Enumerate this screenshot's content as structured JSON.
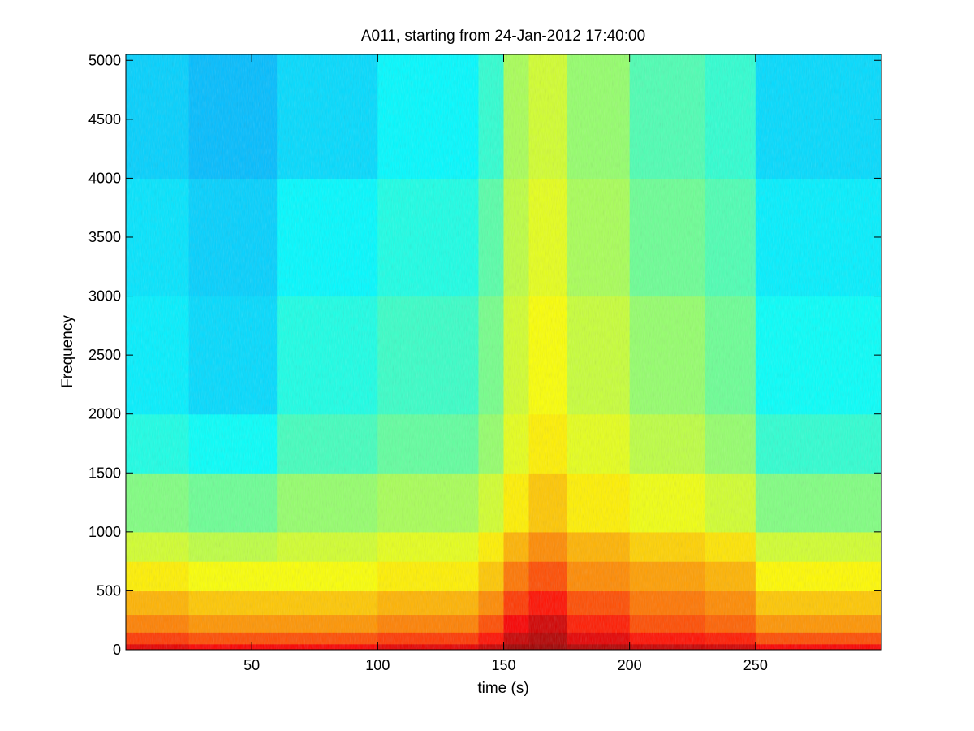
{
  "chart_data": {
    "type": "heatmap",
    "title": "A011, starting from 24-Jan-2012 17:40:00",
    "xlabel": "time (s)",
    "ylabel": "Frequency",
    "xlim": [
      0,
      300
    ],
    "ylim": [
      0,
      5050
    ],
    "x_ticks": [
      50,
      100,
      150,
      200,
      250
    ],
    "y_ticks": [
      0,
      500,
      1000,
      1500,
      2000,
      2500,
      3000,
      3500,
      4000,
      4500,
      5000
    ],
    "colormap": "jet",
    "grid": false,
    "legend": "none",
    "intensity_profile": {
      "description_values": "relative spectral power, 0 = low (cyan/blue), 1 = high (dark red)",
      "frequency_bands": [
        0,
        50,
        150,
        300,
        500,
        750,
        1000,
        1500,
        2000,
        3000,
        4000,
        5000
      ],
      "time_segments": [
        0,
        25,
        60,
        100,
        140,
        150,
        160,
        170,
        175,
        200,
        230,
        250,
        300
      ],
      "levels": [
        [
          0.9,
          0.88,
          0.88,
          0.9,
          0.93,
          0.97,
          0.97,
          0.97,
          0.95,
          0.93,
          0.92,
          0.88,
          0.88
        ],
        [
          0.82,
          0.8,
          0.8,
          0.82,
          0.86,
          0.93,
          0.95,
          0.95,
          0.9,
          0.86,
          0.85,
          0.8,
          0.8
        ],
        [
          0.75,
          0.73,
          0.73,
          0.75,
          0.8,
          0.88,
          0.92,
          0.92,
          0.85,
          0.8,
          0.78,
          0.73,
          0.73
        ],
        [
          0.7,
          0.68,
          0.68,
          0.7,
          0.74,
          0.82,
          0.86,
          0.86,
          0.8,
          0.76,
          0.74,
          0.68,
          0.68
        ],
        [
          0.64,
          0.62,
          0.62,
          0.64,
          0.68,
          0.76,
          0.8,
          0.8,
          0.74,
          0.72,
          0.7,
          0.63,
          0.63
        ],
        [
          0.58,
          0.56,
          0.58,
          0.6,
          0.64,
          0.7,
          0.74,
          0.74,
          0.7,
          0.67,
          0.65,
          0.58,
          0.58
        ],
        [
          0.5,
          0.48,
          0.52,
          0.54,
          0.58,
          0.64,
          0.68,
          0.68,
          0.64,
          0.61,
          0.58,
          0.5,
          0.5
        ],
        [
          0.4,
          0.38,
          0.44,
          0.47,
          0.52,
          0.6,
          0.64,
          0.64,
          0.6,
          0.56,
          0.52,
          0.42,
          0.42
        ],
        [
          0.36,
          0.34,
          0.4,
          0.43,
          0.49,
          0.58,
          0.62,
          0.62,
          0.57,
          0.52,
          0.48,
          0.38,
          0.38
        ],
        [
          0.35,
          0.33,
          0.37,
          0.4,
          0.46,
          0.56,
          0.6,
          0.6,
          0.54,
          0.48,
          0.45,
          0.36,
          0.36
        ],
        [
          0.33,
          0.31,
          0.34,
          0.37,
          0.42,
          0.54,
          0.58,
          0.58,
          0.52,
          0.45,
          0.42,
          0.34,
          0.34
        ]
      ]
    }
  }
}
